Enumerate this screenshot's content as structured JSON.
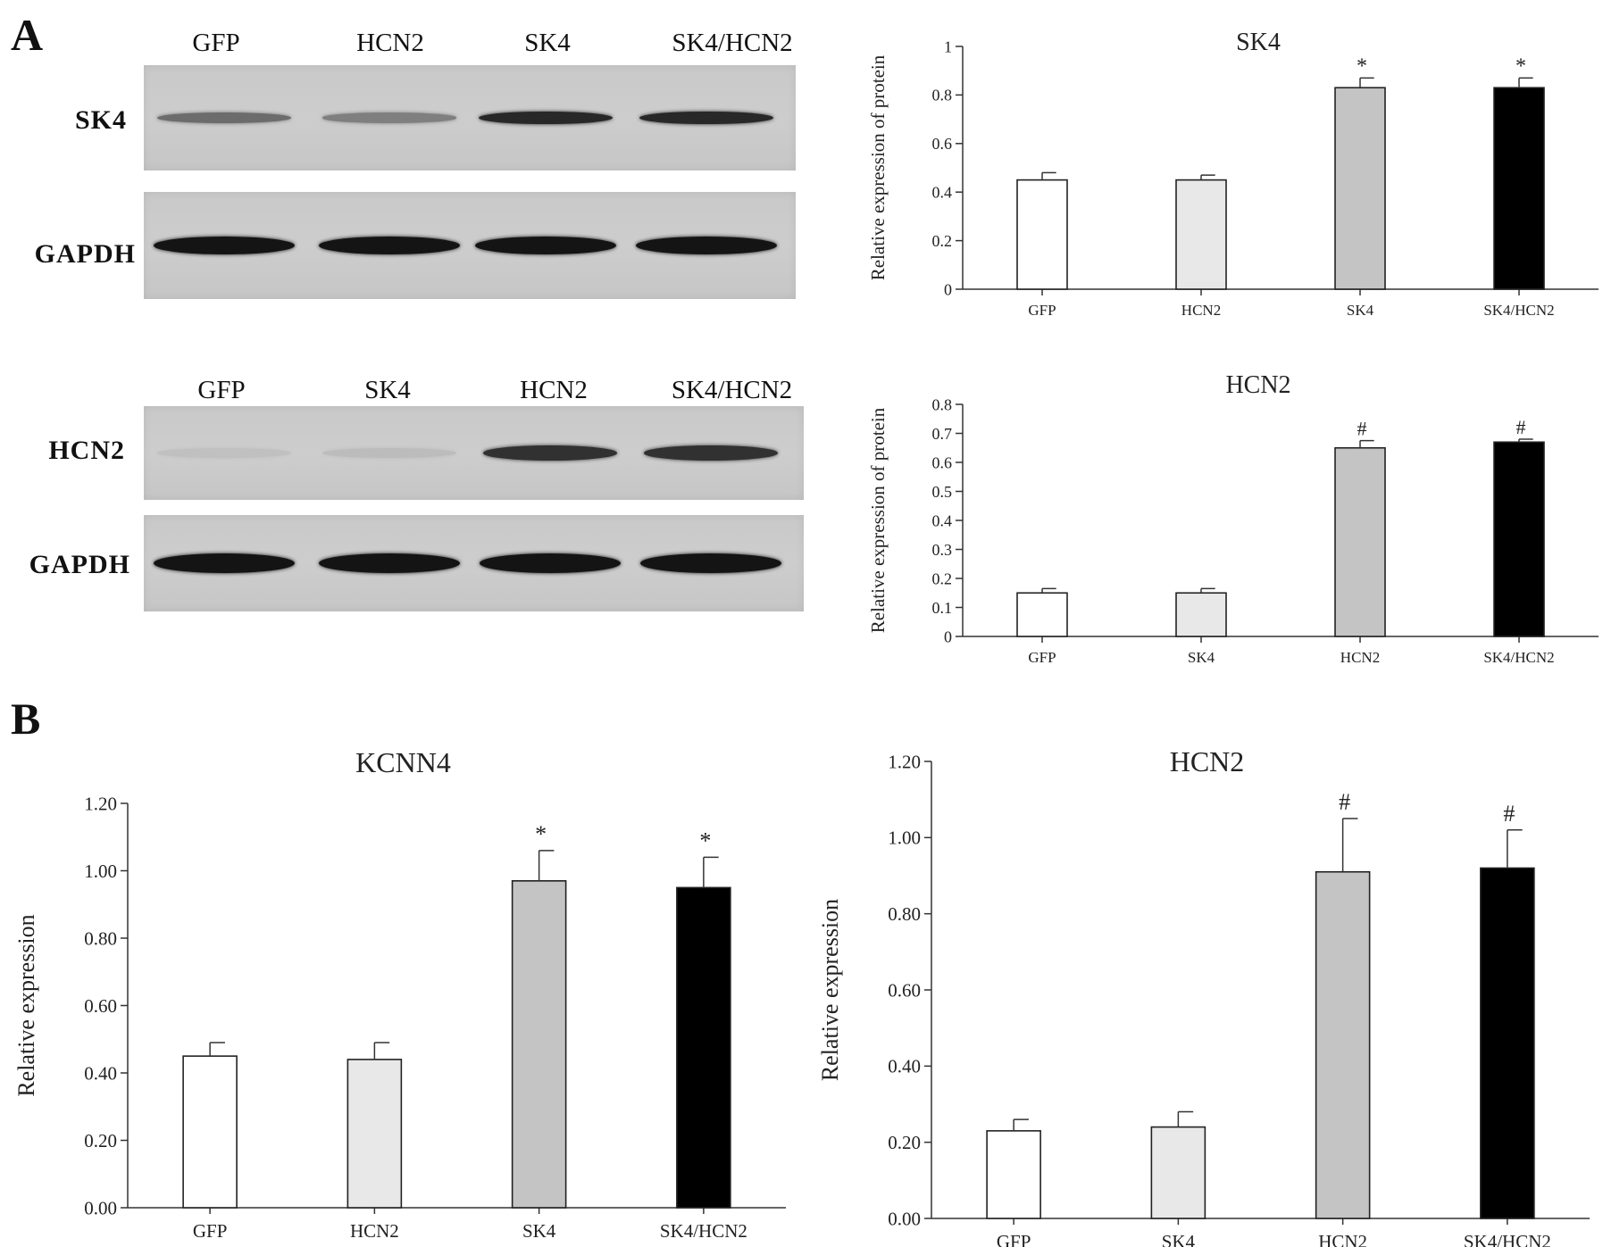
{
  "panel_labels": [
    "A",
    "B"
  ],
  "blots": [
    {
      "lanes": [
        "GFP",
        "HCN2",
        "SK4",
        "SK4/HCN2"
      ],
      "rows": [
        {
          "label": "SK4",
          "intensity": [
            0.55,
            0.45,
            0.9,
            0.9
          ]
        },
        {
          "label": "GAPDH",
          "intensity": [
            1,
            1,
            1,
            1
          ]
        }
      ]
    },
    {
      "lanes": [
        "GFP",
        "SK4",
        "HCN2",
        "SK4/HCN2"
      ],
      "rows": [
        {
          "label": "HCN2",
          "intensity": [
            0.12,
            0.14,
            0.85,
            0.85
          ]
        },
        {
          "label": "GAPDH",
          "intensity": [
            1,
            1,
            1,
            1
          ]
        }
      ]
    }
  ],
  "chart_data": [
    {
      "type": "bar",
      "title": "SK4",
      "ylabel": "Relative expression of protein",
      "xlabel": "",
      "categories": [
        "GFP",
        "HCN2",
        "SK4",
        "SK4/HCN2"
      ],
      "values": [
        0.45,
        0.45,
        0.83,
        0.83
      ],
      "errors": [
        0.03,
        0.02,
        0.04,
        0.04
      ],
      "annotations": [
        "",
        "",
        "*",
        "*"
      ],
      "bar_colors": [
        "#ffffff",
        "#e8e8e8",
        "#c4c4c4",
        "#000000"
      ],
      "ylim": [
        0,
        1
      ],
      "yticks": [
        "0",
        "0.2",
        "0.4",
        "0.6",
        "0.8",
        "1"
      ]
    },
    {
      "type": "bar",
      "title": "HCN2",
      "ylabel": "Relative expression of protein",
      "xlabel": "",
      "categories": [
        "GFP",
        "SK4",
        "HCN2",
        "SK4/HCN2"
      ],
      "values": [
        0.15,
        0.15,
        0.65,
        0.67
      ],
      "errors": [
        0.015,
        0.015,
        0.025,
        0.01
      ],
      "annotations": [
        "",
        "",
        "#",
        "#"
      ],
      "bar_colors": [
        "#ffffff",
        "#e8e8e8",
        "#c4c4c4",
        "#000000"
      ],
      "ylim": [
        0,
        0.8
      ],
      "yticks": [
        "0",
        "0.1",
        "0.2",
        "0.3",
        "0.4",
        "0.5",
        "0.6",
        "0.7",
        "0.8"
      ]
    },
    {
      "type": "bar",
      "title": "KCNN4",
      "ylabel": "Relative expression",
      "xlabel": "",
      "categories": [
        "GFP",
        "HCN2",
        "SK4",
        "SK4/HCN2"
      ],
      "values": [
        0.45,
        0.44,
        0.97,
        0.95
      ],
      "errors": [
        0.04,
        0.05,
        0.09,
        0.09
      ],
      "annotations": [
        "",
        "",
        "*",
        "*"
      ],
      "bar_colors": [
        "#ffffff",
        "#e8e8e8",
        "#c4c4c4",
        "#000000"
      ],
      "ylim": [
        0,
        1.2
      ],
      "yticks": [
        "0.00",
        "0.20",
        "0.40",
        "0.60",
        "0.80",
        "1.00",
        "1.20"
      ]
    },
    {
      "type": "bar",
      "title": "HCN2",
      "ylabel": "Relative expression",
      "xlabel": "",
      "categories": [
        "GFP",
        "SK4",
        "HCN2",
        "SK4/HCN2"
      ],
      "values": [
        0.23,
        0.24,
        0.91,
        0.92
      ],
      "errors": [
        0.03,
        0.04,
        0.14,
        0.1
      ],
      "annotations": [
        "",
        "",
        "#",
        "#"
      ],
      "bar_colors": [
        "#ffffff",
        "#e8e8e8",
        "#c4c4c4",
        "#000000"
      ],
      "ylim": [
        0,
        1.2
      ],
      "yticks": [
        "0.00",
        "0.20",
        "0.40",
        "0.60",
        "0.80",
        "1.00",
        "1.20"
      ]
    }
  ]
}
